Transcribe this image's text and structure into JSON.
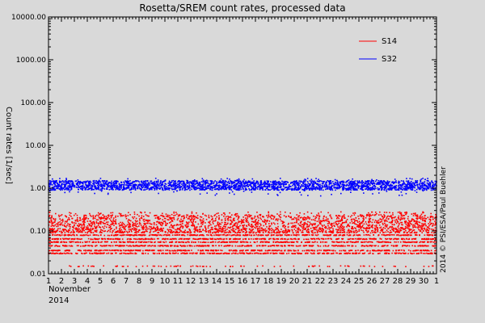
{
  "chart_data": {
    "type": "scatter",
    "title": "Rosetta/SREM count rates, processed data",
    "ylabel": "Count rates [1/sec]",
    "xlabel": "November\n2014",
    "xlabel_lines": [
      "November",
      "2014"
    ],
    "credit": "2014 © PSI/ESA/Paul Buehler",
    "y_scale": "log",
    "ylim": [
      0.01,
      10000
    ],
    "y_ticks": [
      0.01,
      0.1,
      1,
      10,
      100,
      1000,
      10000
    ],
    "y_tick_labels": [
      "0.01",
      "0.10",
      "1.00",
      "10.00",
      "100.00",
      "1000.00",
      "10000.00"
    ],
    "xlim": [
      1,
      31
    ],
    "x_ticks": [
      1,
      2,
      3,
      4,
      5,
      6,
      7,
      8,
      9,
      10,
      11,
      12,
      13,
      14,
      15,
      16,
      17,
      18,
      19,
      20,
      21,
      22,
      23,
      24,
      25,
      26,
      27,
      28,
      29,
      30,
      31
    ],
    "x_tick_labels": [
      "1",
      "2",
      "3",
      "4",
      "5",
      "6",
      "7",
      "8",
      "9",
      "10",
      "11",
      "12",
      "13",
      "14",
      "15",
      "16",
      "17",
      "18",
      "19",
      "20",
      "21",
      "22",
      "23",
      "24",
      "25",
      "26",
      "27",
      "28",
      "29",
      "30",
      "1"
    ],
    "grid": false,
    "legend_position": "top-right",
    "series": [
      {
        "name": "S14",
        "color": "#ff0000",
        "band_low": 0.09,
        "band_high": 0.24,
        "levels": [
          0.08,
          0.065,
          0.055,
          0.045,
          0.035,
          0.03,
          0.015
        ],
        "outlier_high": 0.28
      },
      {
        "name": "S32",
        "color": "#0000ff",
        "band_low": 0.9,
        "band_high": 1.5,
        "outlier_low": 0.65,
        "outlier_high": 1.7
      }
    ]
  }
}
